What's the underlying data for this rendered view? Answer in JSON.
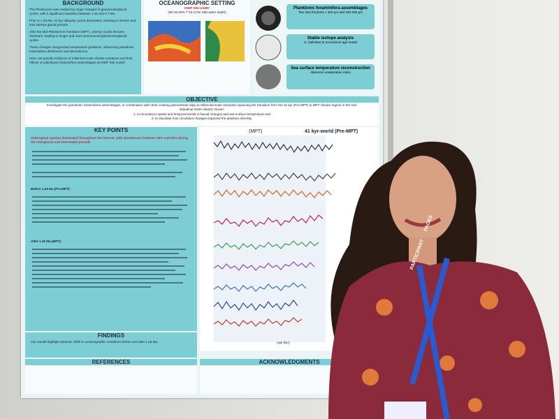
{
  "poster": {
    "background": {
      "title": "BACKGROUND",
      "paragraphs": [
        "The Pleistocene was marked by major changes in glacial-interglacial cycles, with a significant transition between 1.25 and 0.7 Ma.",
        "Prior to 1.25 Ma, 41-kyr obliquity cycles dominated, resulting in shorter and less intense glacial periods.",
        "After the Mid-Pleistocene Transition (MPT), 100-kyr cycles became dominant, leading to longer and more pronounced glacial-interglacial cycles.",
        "These changes reorganized temperature gradients, influencing planktonic foraminifera distribution and abundances.",
        "Here, we provide evidence of millennial scale climate variations and their effects on planktonic foraminifera assemblages at IODP Site U1387."
      ]
    },
    "setting": {
      "title": "OCEANOGRAPHIC SETTING",
      "site": "IODP Site U1387",
      "coords": "(36°48.32'N 7°43.13'W, 558 water depth)"
    },
    "methods": {
      "items": [
        {
          "title": "Planktonic foraminifera assemblages",
          "text": "Two size fractions > 250 µm and 150-250 µm"
        },
        {
          "title": "Stable isotope analysis",
          "text": "G. bulloides to reconstruct age model"
        },
        {
          "title": "Sea surface temperature reconstruction",
          "text": "Alkenone unsaturation index"
        }
      ]
    },
    "objective": {
      "title": "OBJECTIVE",
      "text": "Investigate the planktonic foraminifera assemblages, in combination with other existing paleoclimate data at millennial-scale resolution spanning the transition from the 41-kyr (Pre-MPT) to MPT climate regime in the mid-latitudinal North Atlantic Ocean:",
      "points": [
        "1. to reconstruct spatial and temporal trends in faunal changes and sea surface temperature and",
        "2. to elucidate how circulation changes impacted the plankton diversity."
      ]
    },
    "key_points": {
      "title": "KEY POINTS",
      "lead": "Subtropical species dominated throughout the interval, with abundances between 30% and 60% during the interglacial and interstadial periods",
      "sub1": "Before 1.25 Ma (Pre-MPT):",
      "sub2": "After 1.25 Ma (MPT):"
    },
    "figure": {
      "left_label": "(MPT)",
      "right_label": "41 kyr-world (Pre-MPT)",
      "x_label": "Age (kyr)"
    },
    "findings": {
      "title": "FINDINGS",
      "text": "Our results highlight dynamic shifts in oceanographic conditions before and after 1.25 Ma."
    },
    "references": {
      "title": "REFERENCES"
    },
    "acknowledgments": {
      "title": "ACKNOWLEDGMENTS"
    }
  },
  "badge": {
    "org": "PAGES",
    "role": "PARTICIPANT"
  }
}
